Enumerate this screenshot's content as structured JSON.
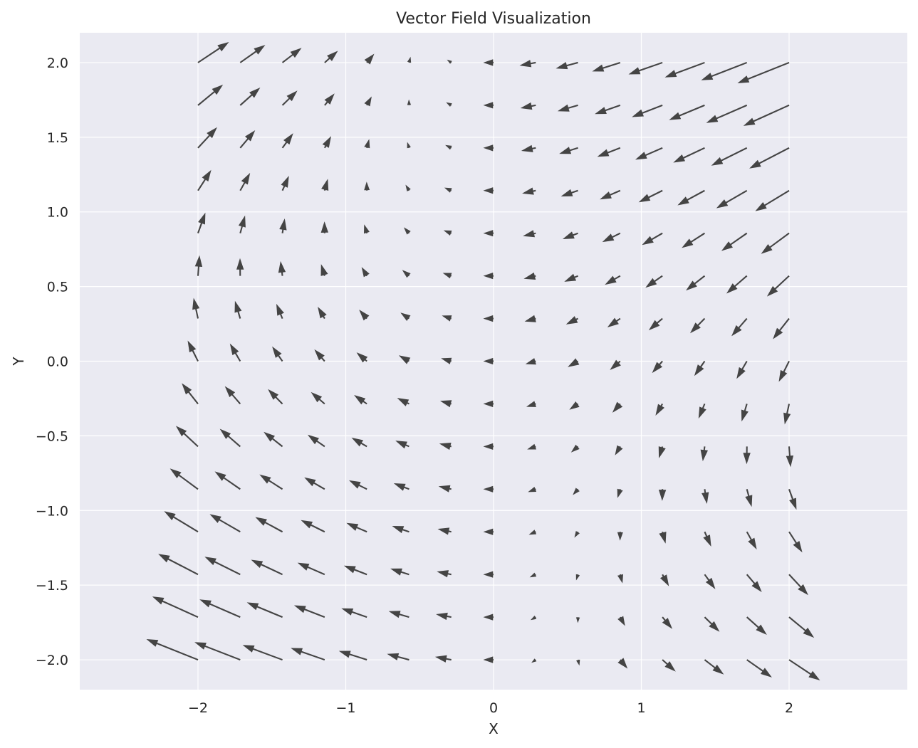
{
  "chart_data": {
    "type": "quiver",
    "title": "Vector Field Visualization",
    "xlabel": "X",
    "ylabel": "Y",
    "xlim": [
      -2.8,
      2.8
    ],
    "ylim": [
      -2.2,
      2.2
    ],
    "x": [
      -2.0,
      -1.7142857,
      -1.4285714,
      -1.1428571,
      -0.8571429,
      -0.5714286,
      -0.2857143,
      0.0,
      0.2857143,
      0.5714286,
      0.8571429,
      1.1428571,
      1.4285714,
      1.7142857,
      2.0
    ],
    "y": [
      -2.0,
      -1.7142857,
      -1.4285714,
      -1.1428571,
      -0.8571429,
      -0.5714286,
      -0.2857143,
      0.0,
      0.2857143,
      0.5714286,
      0.8571429,
      1.1428571,
      1.4285714,
      1.7142857,
      2.0
    ],
    "u_formula": "-1 - x*y",
    "v_formula": "-x",
    "xticks": [
      -2,
      -1,
      0,
      1,
      2
    ],
    "xtick_labels": [
      "−2",
      "−1",
      "0",
      "1",
      "2"
    ],
    "yticks": [
      2.0,
      1.5,
      1.0,
      0.5,
      0.0,
      -0.5,
      -1.0,
      -1.5,
      -2.0
    ],
    "ytick_labels": [
      "2.0",
      "1.5",
      "1.0",
      "0.5",
      "0.0",
      "−0.5",
      "−1.0",
      "−1.5",
      "−2.0"
    ],
    "grid": true,
    "colors": {
      "background": "#eaeaf2",
      "grid": "#ffffff",
      "arrow": "#444444"
    }
  }
}
